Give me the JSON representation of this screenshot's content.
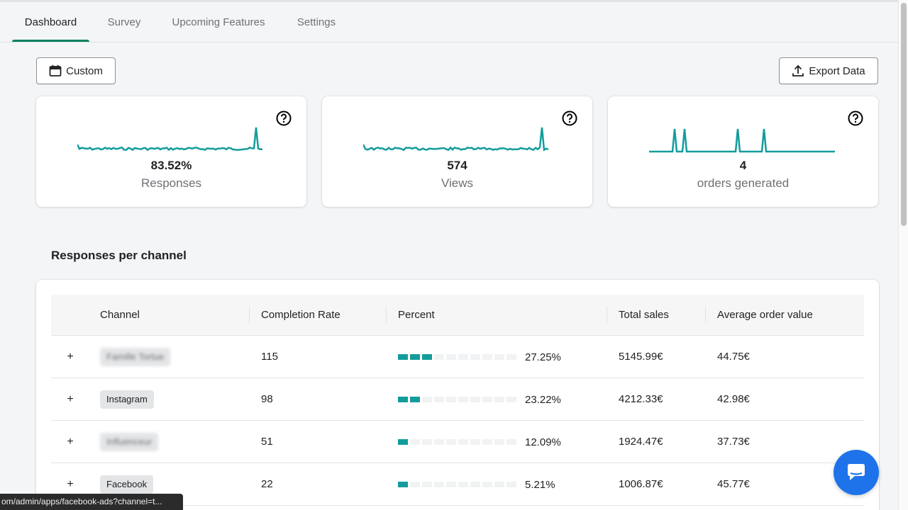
{
  "tabs": [
    {
      "label": "Dashboard",
      "active": true
    },
    {
      "label": "Survey",
      "active": false
    },
    {
      "label": "Upcoming Features",
      "active": false
    },
    {
      "label": "Settings",
      "active": false
    }
  ],
  "toolbar": {
    "date_button_label": "Custom",
    "export_button_label": "Export Data"
  },
  "metrics": [
    {
      "value": "83.52%",
      "label": "Responses"
    },
    {
      "value": "574",
      "label": "Views"
    },
    {
      "value": "4",
      "label": "orders generated"
    }
  ],
  "section_title": "Responses per channel",
  "table": {
    "columns": [
      "Channel",
      "Completion Rate",
      "Percent",
      "Total sales",
      "Average order value"
    ],
    "rows": [
      {
        "channel": "Famille Tortue",
        "blurred": true,
        "completion": "115",
        "percent": "27.25%",
        "percent_value": 27.25,
        "sales": "5145.99€",
        "aov": "44.75€"
      },
      {
        "channel": "Instagram",
        "blurred": false,
        "completion": "98",
        "percent": "23.22%",
        "percent_value": 23.22,
        "sales": "4212.33€",
        "aov": "42.98€"
      },
      {
        "channel": "Influenceur",
        "blurred": true,
        "completion": "51",
        "percent": "12.09%",
        "percent_value": 12.09,
        "sales": "1924.47€",
        "aov": "37.73€"
      },
      {
        "channel": "Facebook",
        "blurred": false,
        "completion": "22",
        "percent": "5.21%",
        "percent_value": 5.21,
        "sales": "1006.87€",
        "aov": "45.77€"
      }
    ]
  },
  "status_url": "om/admin/apps/facebook-ads?channel=t...",
  "colors": {
    "accent": "#149c9c",
    "tab_underline": "#008060",
    "chat_button": "#1f73ea"
  },
  "icons": {
    "date_button": "calendar-icon",
    "export_button": "upload-icon",
    "metric_help": "question-circle-icon",
    "row_expand": "plus-icon",
    "chat": "chat-bubble-icon"
  }
}
